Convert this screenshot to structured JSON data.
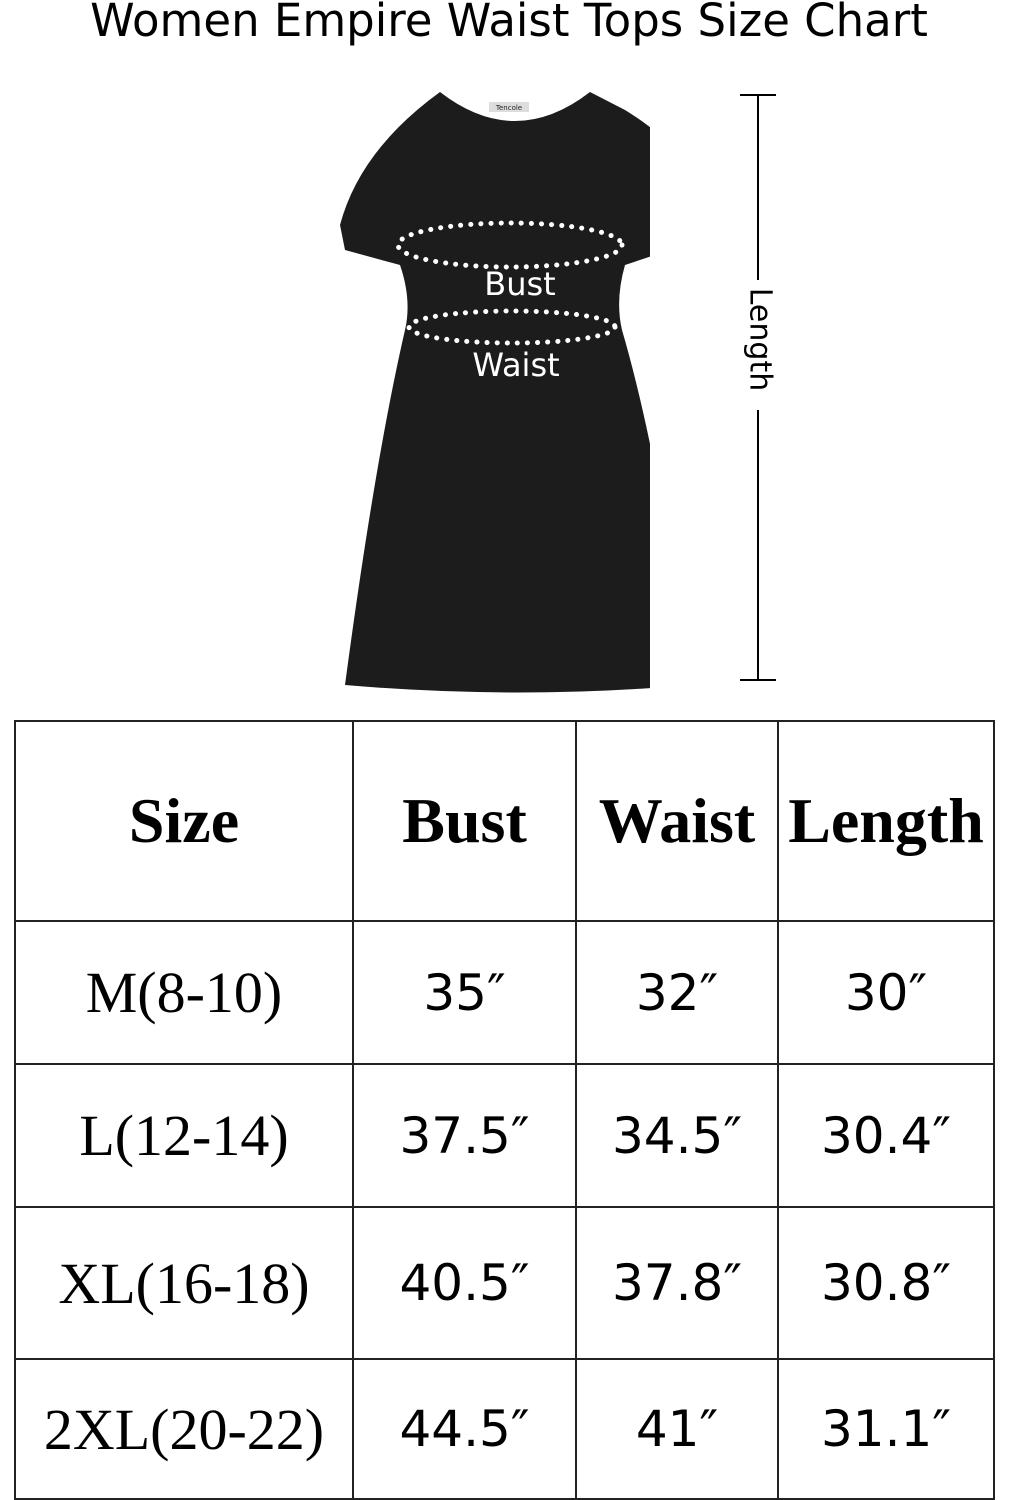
{
  "title": "Women Empire Waist Tops Size Chart",
  "garment": {
    "brand_label": "Tencole",
    "bust_label": "Bust",
    "waist_label": "Waist",
    "length_label": "Length",
    "color": "#1c1c1c"
  },
  "table": {
    "headers": [
      "Size",
      "Bust",
      "Waist",
      "Length"
    ],
    "rows": [
      [
        "M(8-10)",
        "35″",
        "32″",
        "30″"
      ],
      [
        "L(12-14)",
        "37.5″",
        "34.5″",
        "30.4″"
      ],
      [
        "XL(16-18)",
        "40.5″",
        "37.8″",
        "30.8″"
      ],
      [
        "2XL(20-22)",
        "44.5″",
        "41″",
        "31.1″"
      ]
    ]
  }
}
